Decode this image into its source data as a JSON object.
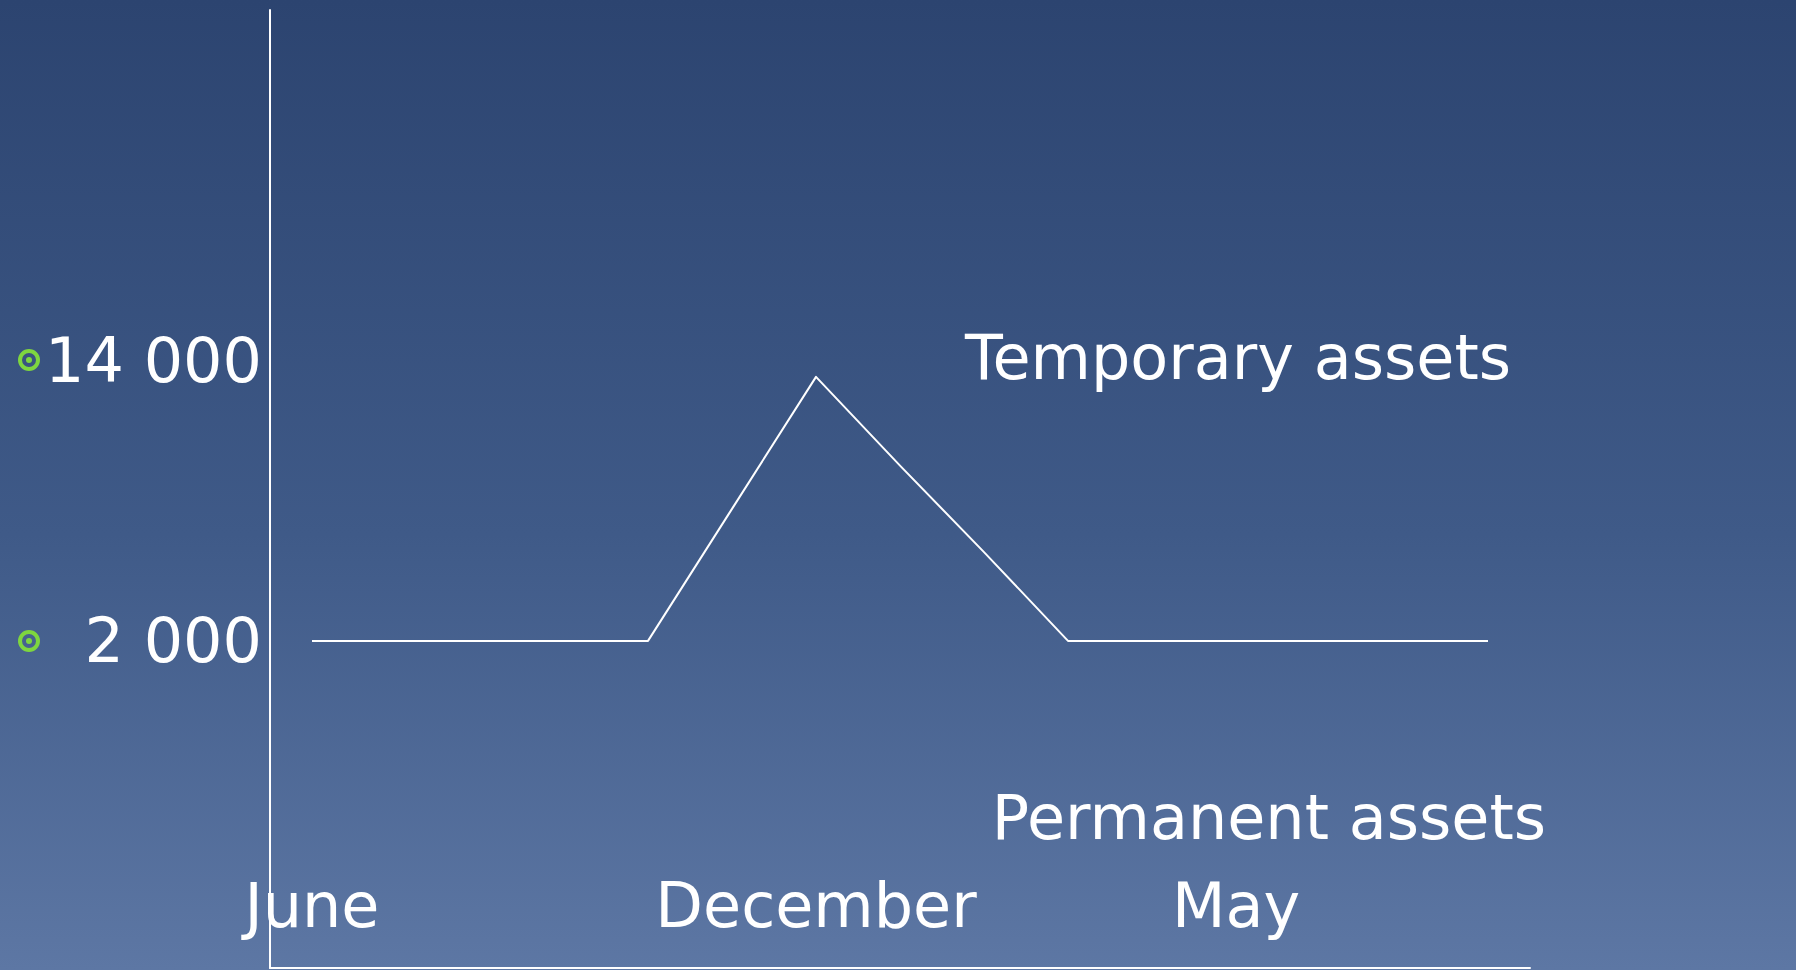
{
  "chart_data": {
    "type": "line",
    "categories": [
      "June",
      null,
      null,
      null,
      null,
      null,
      "December",
      null,
      null,
      null,
      null,
      "May",
      null,
      null,
      null
    ],
    "series": [
      {
        "color": "#ffffff",
        "values": [
          2000,
          2000,
          2000,
          2000,
          2000,
          7650,
          13300,
          9500,
          5800,
          2000,
          2000,
          2000,
          2000,
          2000,
          2000
        ]
      }
    ],
    "ylim": [
      -12000,
      29000
    ],
    "yticks": [
      {
        "value": 2000,
        "label": "2 000"
      },
      {
        "value": 14000,
        "label": "14 000"
      }
    ],
    "annotations": [
      "Temporary assets",
      "Permanent assets"
    ],
    "grid": false,
    "marker": "none",
    "line_style": "solid"
  }
}
